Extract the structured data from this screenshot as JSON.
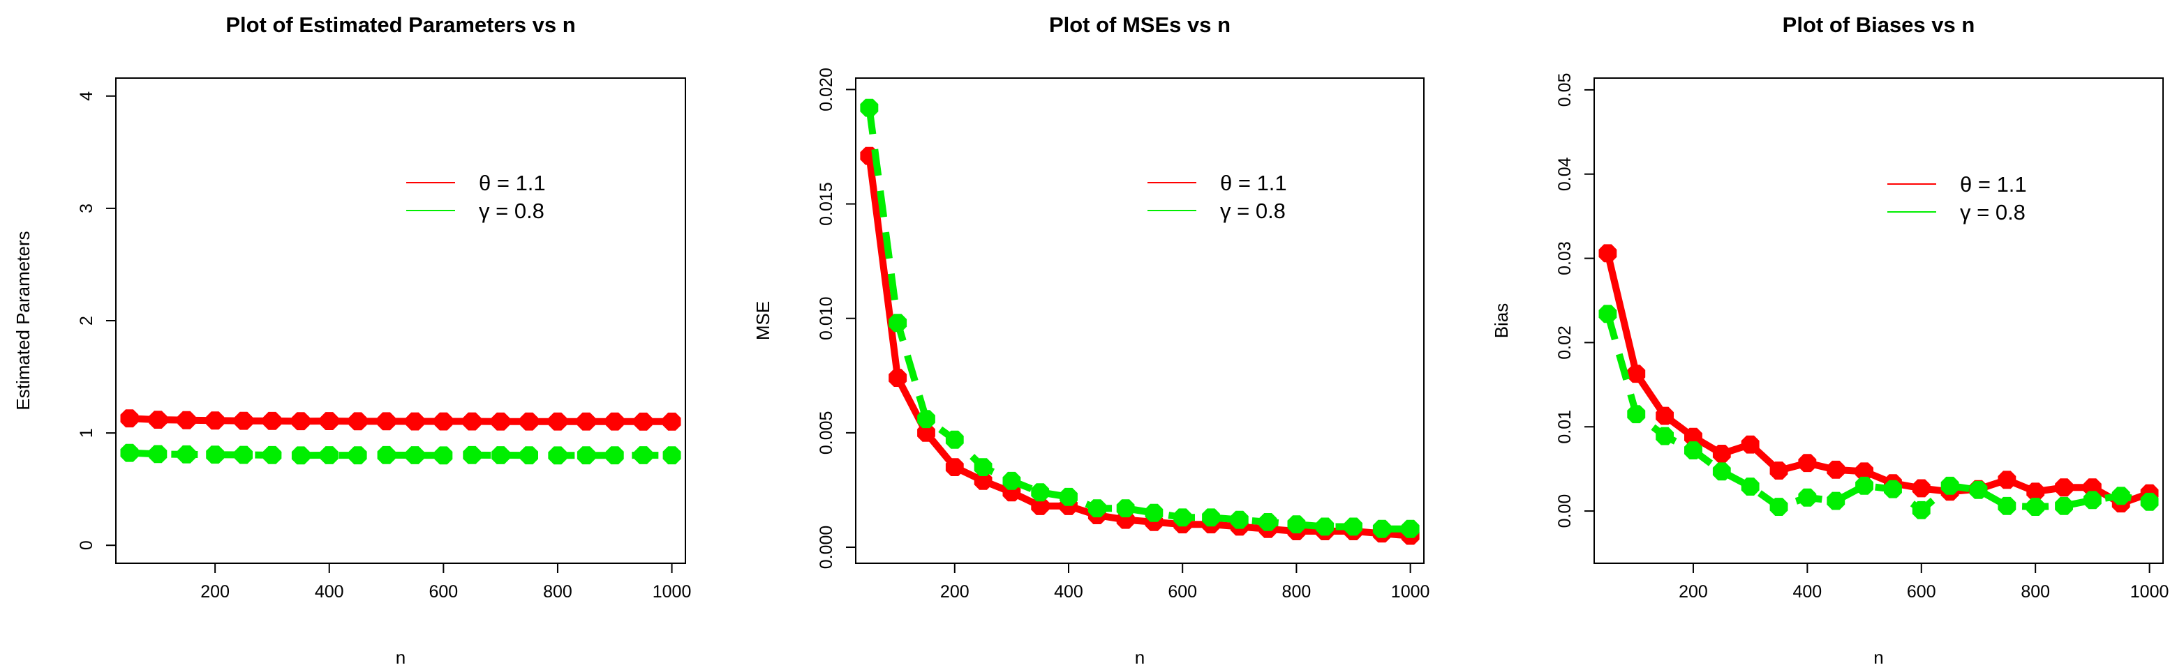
{
  "chart_data": [
    {
      "type": "line",
      "title": "Plot of Estimated Parameters vs n",
      "xlabel": "n",
      "ylabel": "Estimated Parameters",
      "xlim": [
        26.25,
        1023.75
      ],
      "ylim": [
        -0.16,
        4.16
      ],
      "x_ticks": [
        200,
        400,
        600,
        800,
        1000
      ],
      "x_tick_labels": [
        "200",
        "400",
        "600",
        "800",
        "1000"
      ],
      "y_ticks": [
        0,
        1,
        2,
        3,
        4
      ],
      "y_tick_labels": [
        "0",
        "1",
        "2",
        "3",
        "4"
      ],
      "legend_position": "top-right",
      "x": [
        50,
        100,
        150,
        200,
        250,
        300,
        350,
        400,
        450,
        500,
        550,
        600,
        650,
        700,
        750,
        800,
        850,
        900,
        950,
        1000
      ],
      "series": [
        {
          "name": "θ = 1.1",
          "color": "#ff0000",
          "dashed": false,
          "values": [
            1.13,
            1.118,
            1.114,
            1.111,
            1.108,
            1.107,
            1.105,
            1.106,
            1.104,
            1.104,
            1.103,
            1.103,
            1.103,
            1.102,
            1.102,
            1.102,
            1.102,
            1.102,
            1.101,
            1.101
          ]
        },
        {
          "name": "γ = 0.8",
          "color": "#00ee00",
          "dashed": true,
          "values": [
            0.823,
            0.812,
            0.809,
            0.807,
            0.805,
            0.803,
            0.8,
            0.802,
            0.801,
            0.803,
            0.802,
            0.8,
            0.803,
            0.802,
            0.801,
            0.8,
            0.801,
            0.801,
            0.802,
            0.801
          ]
        }
      ]
    },
    {
      "type": "line",
      "title": "Plot of MSEs vs n",
      "xlabel": "n",
      "ylabel": "MSE",
      "xlim": [
        26.25,
        1023.75
      ],
      "ylim": [
        -0.0007,
        0.0205
      ],
      "x_ticks": [
        200,
        400,
        600,
        800,
        1000
      ],
      "x_tick_labels": [
        "200",
        "400",
        "600",
        "800",
        "1000"
      ],
      "y_ticks": [
        0,
        0.005,
        0.01,
        0.015,
        0.02
      ],
      "y_tick_labels": [
        "0.000",
        "0.005",
        "0.010",
        "0.015",
        "0.020"
      ],
      "legend_position": "top-right",
      "x": [
        50,
        100,
        150,
        200,
        250,
        300,
        350,
        400,
        450,
        500,
        550,
        600,
        650,
        700,
        750,
        800,
        850,
        900,
        950,
        1000
      ],
      "series": [
        {
          "name": "θ = 1.1",
          "color": "#ff0000",
          "dashed": false,
          "values": [
            0.0171,
            0.0074,
            0.005,
            0.0035,
            0.0029,
            0.0024,
            0.0018,
            0.0018,
            0.0014,
            0.0012,
            0.0011,
            0.001,
            0.001,
            0.0009,
            0.0008,
            0.0007,
            0.0007,
            0.0007,
            0.0006,
            0.0005
          ]
        },
        {
          "name": "γ = 0.8",
          "color": "#00ee00",
          "dashed": true,
          "values": [
            0.0192,
            0.0098,
            0.0056,
            0.0047,
            0.0035,
            0.0029,
            0.0024,
            0.0022,
            0.0017,
            0.0017,
            0.0015,
            0.0013,
            0.0013,
            0.0012,
            0.0011,
            0.001,
            0.0009,
            0.0009,
            0.0008,
            0.0008
          ]
        }
      ]
    },
    {
      "type": "line",
      "title": "Plot of Biases vs n",
      "xlabel": "n",
      "ylabel": "Bias",
      "xlim": [
        26.25,
        1023.75
      ],
      "ylim": [
        -0.0062,
        0.0514
      ],
      "x_ticks": [
        200,
        400,
        600,
        800,
        1000
      ],
      "x_tick_labels": [
        "200",
        "400",
        "600",
        "800",
        "1000"
      ],
      "y_ticks": [
        0,
        0.01,
        0.02,
        0.03,
        0.04,
        0.05
      ],
      "y_tick_labels": [
        "0.00",
        "0.01",
        "0.02",
        "0.03",
        "0.04",
        "0.05"
      ],
      "legend_position": "top-right",
      "x": [
        50,
        100,
        150,
        200,
        250,
        300,
        350,
        400,
        450,
        500,
        550,
        600,
        650,
        700,
        750,
        800,
        850,
        900,
        950,
        1000
      ],
      "series": [
        {
          "name": "θ = 1.1",
          "color": "#ff0000",
          "dashed": false,
          "values": [
            0.0306,
            0.0163,
            0.0113,
            0.0088,
            0.0068,
            0.0079,
            0.0048,
            0.0057,
            0.0049,
            0.0047,
            0.0033,
            0.0027,
            0.0023,
            0.0026,
            0.0037,
            0.0023,
            0.0028,
            0.0028,
            0.0009,
            0.0021
          ]
        },
        {
          "name": "γ = 0.8",
          "color": "#00ee00",
          "dashed": true,
          "values": [
            0.0234,
            0.0115,
            0.0089,
            0.0072,
            0.0047,
            0.0029,
            0.0005,
            0.0016,
            0.0012,
            0.003,
            0.0026,
            0.0001,
            0.003,
            0.0025,
            0.0006,
            0.0005,
            0.0006,
            0.0013,
            0.0018,
            0.0011
          ]
        }
      ]
    }
  ]
}
